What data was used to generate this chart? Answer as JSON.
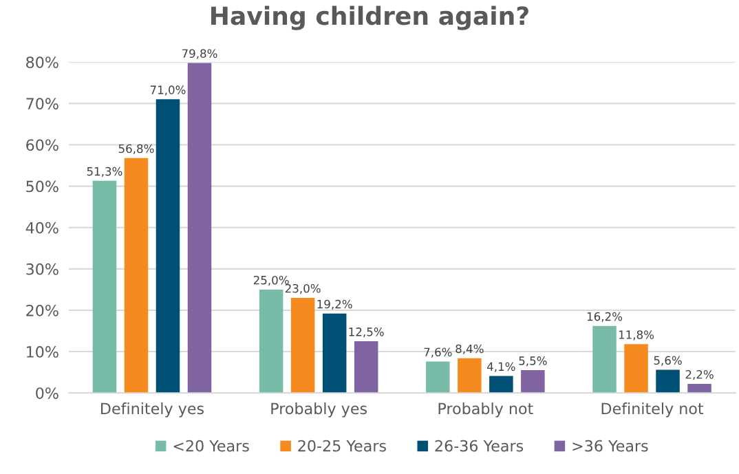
{
  "chart_data": {
    "type": "bar",
    "title": "Having children again?",
    "categories": [
      "Definitely yes",
      "Probably yes",
      "Probably not",
      "Definitely not"
    ],
    "series": [
      {
        "name": "<20 Years",
        "color": "#77bba8",
        "values": [
          51.3,
          25.0,
          7.6,
          16.2
        ],
        "value_labels": [
          "51,3%",
          "25,0%",
          "7,6%",
          "16,2%"
        ]
      },
      {
        "name": "20-25 Years",
        "color": "#f58b1f",
        "values": [
          56.8,
          23.0,
          8.4,
          11.8
        ],
        "value_labels": [
          "56,8%",
          "23,0%",
          "8,4%",
          "11,8%"
        ]
      },
      {
        "name": "26-36 Years",
        "color": "#004f74",
        "values": [
          71.0,
          19.2,
          4.1,
          5.6
        ],
        "value_labels": [
          "71,0%",
          "19,2%",
          "4,1%",
          "5,6%"
        ]
      },
      {
        "name": ">36 Years",
        "color": "#8064a2",
        "values": [
          79.8,
          12.5,
          5.5,
          2.2
        ],
        "value_labels": [
          "79,8%",
          "12,5%",
          "5,5%",
          "2,2%"
        ]
      }
    ],
    "ylim": [
      0,
      80
    ],
    "yticks": [
      {
        "value": 0,
        "label": "0%"
      },
      {
        "value": 10,
        "label": "10%"
      },
      {
        "value": 20,
        "label": "20%"
      },
      {
        "value": 30,
        "label": "30%"
      },
      {
        "value": 40,
        "label": "40%"
      },
      {
        "value": 50,
        "label": "50%"
      },
      {
        "value": 60,
        "label": "60%"
      },
      {
        "value": 70,
        "label": "70%"
      },
      {
        "value": 80,
        "label": "80%"
      }
    ],
    "grid": "y",
    "legend": "bottom"
  }
}
